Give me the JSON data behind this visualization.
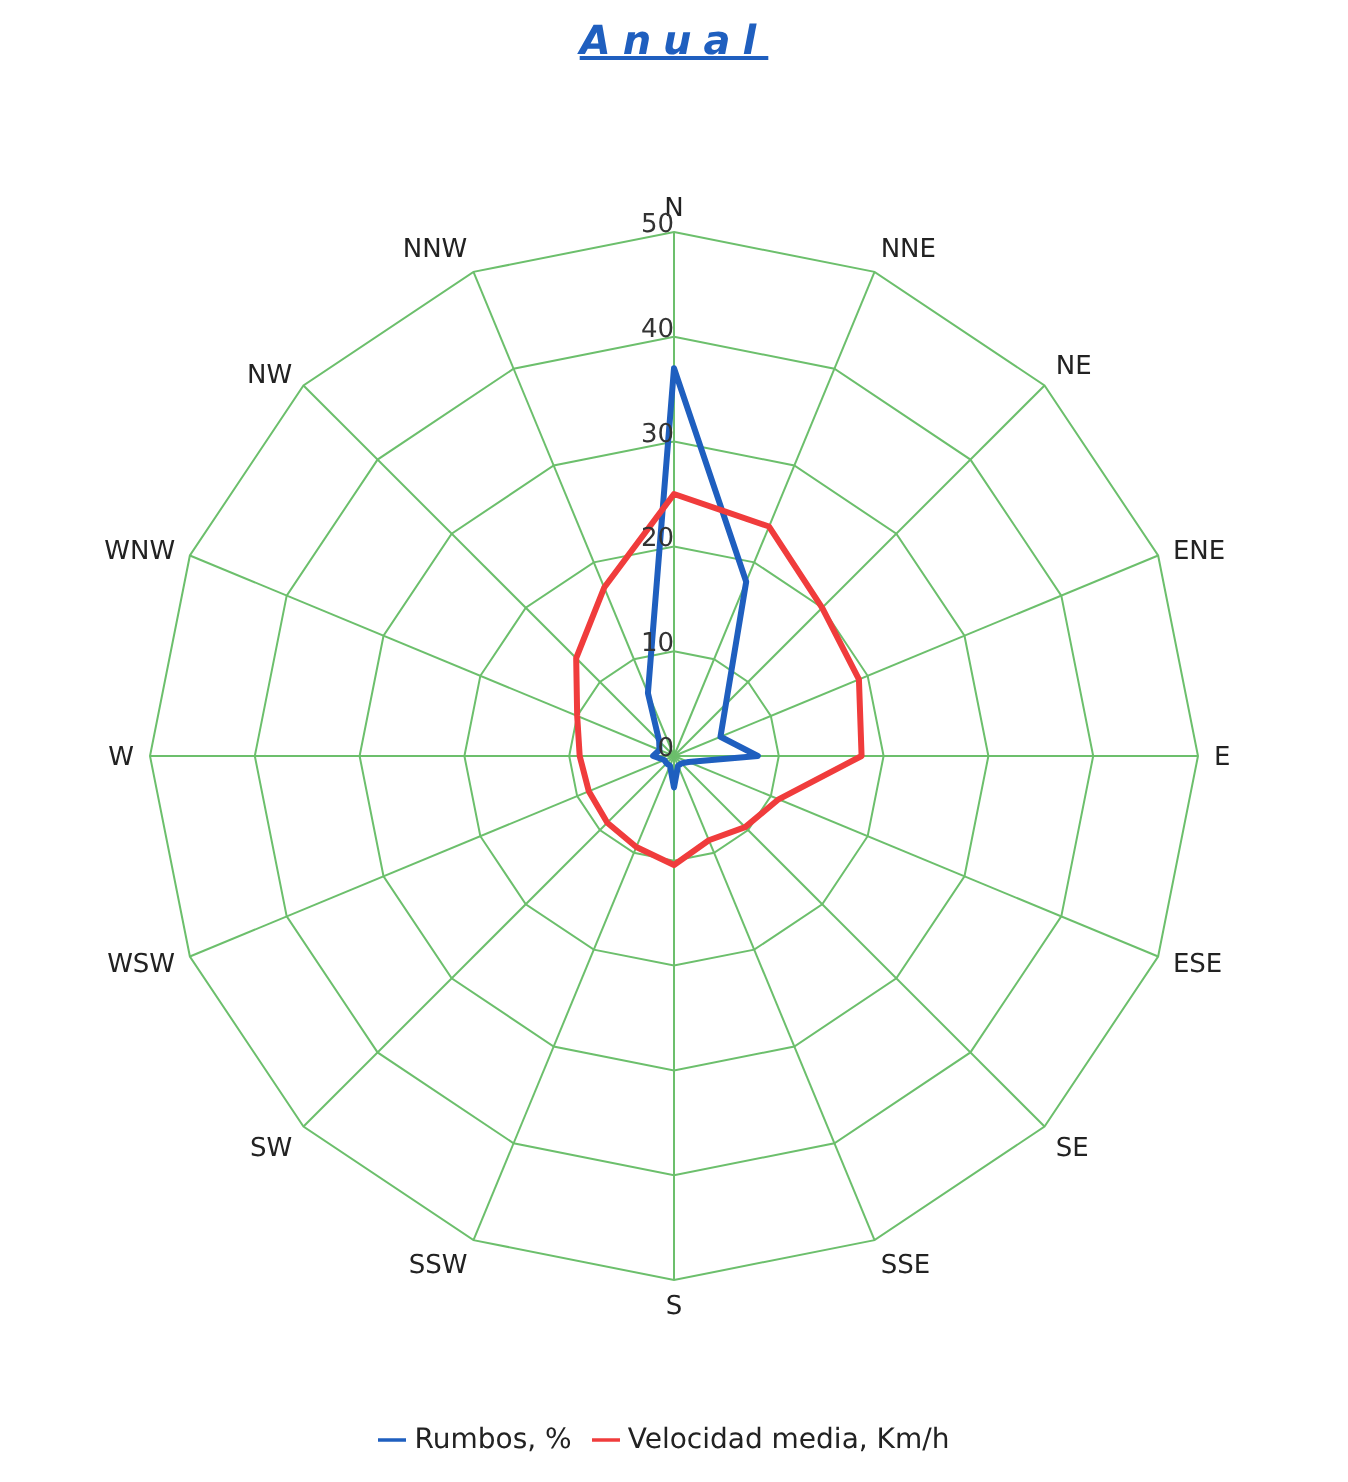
{
  "chart_data": {
    "type": "radar",
    "title": "Anual",
    "categories": [
      "N",
      "NNE",
      "NE",
      "ENE",
      "E",
      "ESE",
      "SE",
      "SSE",
      "S",
      "SSW",
      "SW",
      "WSW",
      "W",
      "WNW",
      "NW",
      "NNW"
    ],
    "series": [
      {
        "name": "Rumbos, %",
        "color": "#1f5fbf",
        "values": [
          37,
          18,
          7,
          4.8,
          8,
          1.5,
          1,
          1,
          3,
          1,
          1,
          1,
          2,
          1.5,
          2,
          6.5
        ]
      },
      {
        "name": "Velocidad media, Km/h",
        "color": "#f03c3c",
        "values": [
          25,
          23.7,
          20,
          19.1,
          17.9,
          10.8,
          9.6,
          8.7,
          10.4,
          9.4,
          9,
          8.8,
          9,
          10,
          13.2,
          17.4
        ]
      }
    ],
    "ylim": [
      0,
      50
    ],
    "yticks": [
      0,
      10,
      20,
      30,
      40,
      50
    ],
    "grid": true,
    "legend": "bottom",
    "marker": "none",
    "line_style": "solid"
  }
}
